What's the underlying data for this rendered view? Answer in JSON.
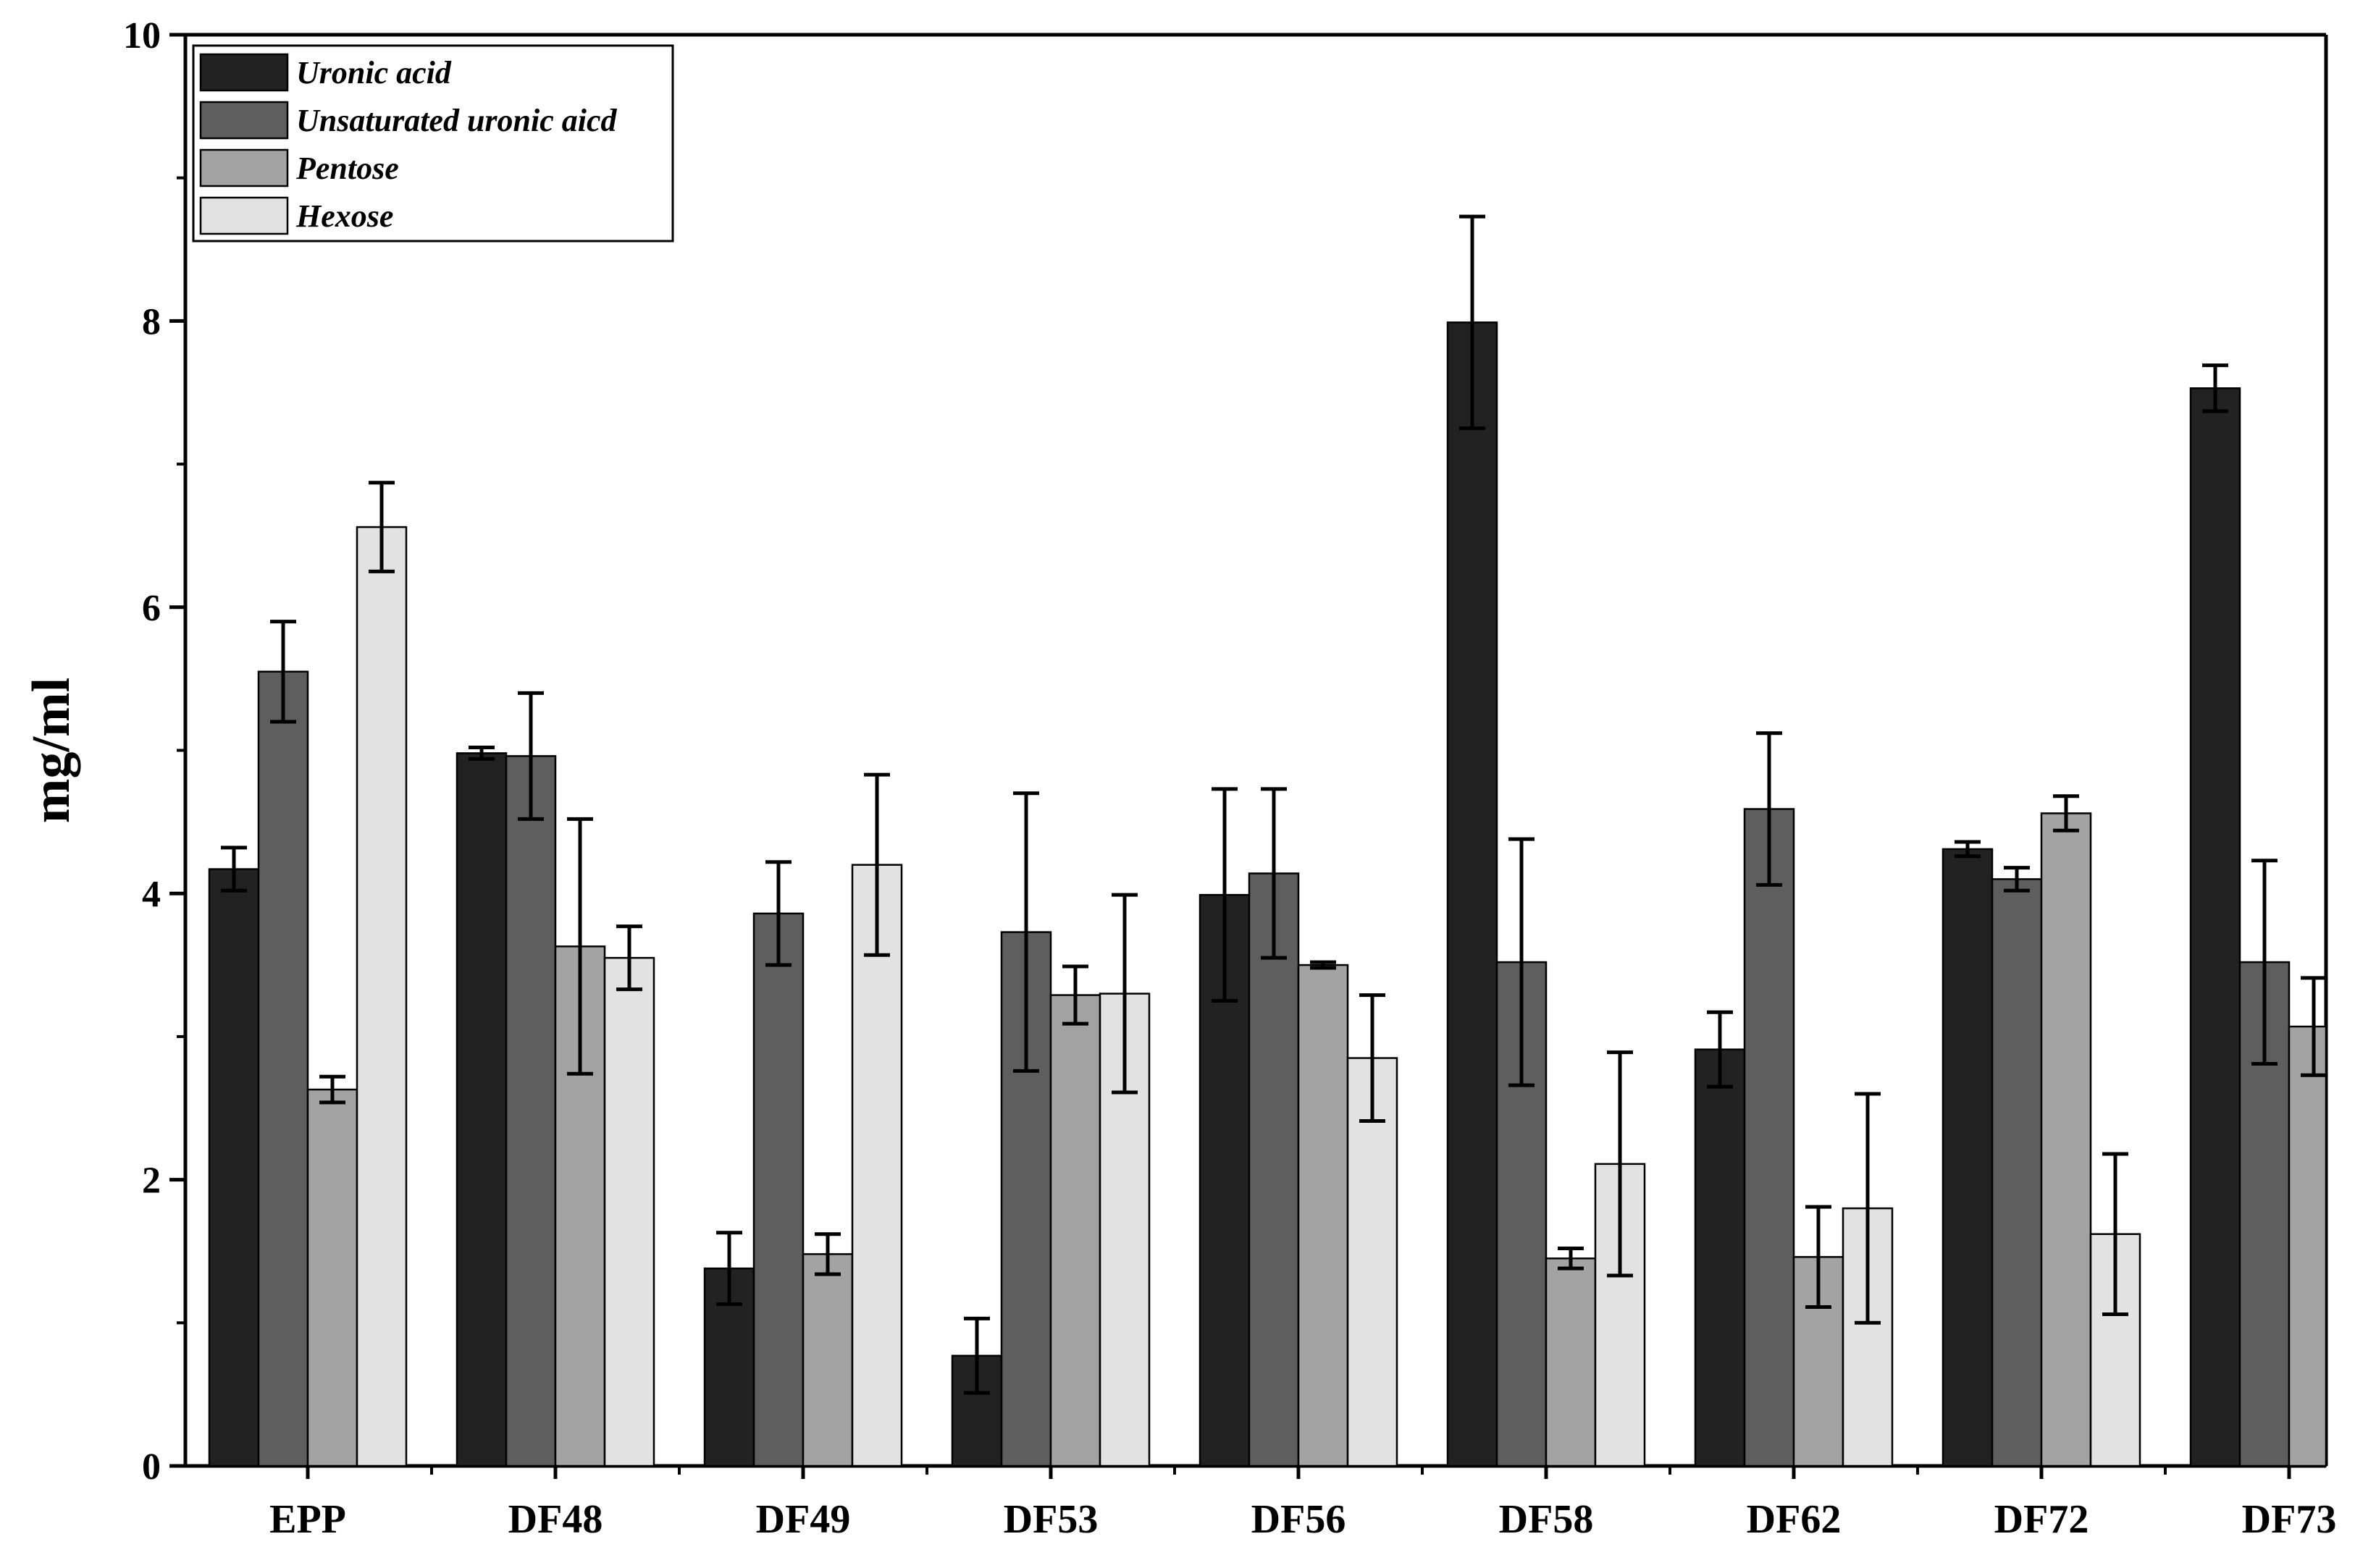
{
  "chart_data": {
    "type": "bar",
    "title": "",
    "xlabel": "",
    "ylabel": "mg/ml",
    "ylim": [
      0,
      10
    ],
    "yticks": [
      "0",
      "2",
      "4",
      "6",
      "8",
      "10"
    ],
    "categories": [
      "EPP",
      "DF48",
      "DF49",
      "DF53",
      "DF56",
      "DF58",
      "DF62",
      "DF72",
      "DF73"
    ],
    "legend_position": "top-left",
    "series": [
      {
        "name": "Uronic acid",
        "color": "#222222",
        "values": [
          4.17,
          4.98,
          1.38,
          0.77,
          3.99,
          7.99,
          2.91,
          4.31,
          7.53
        ],
        "errors": [
          0.15,
          0.04,
          0.25,
          0.26,
          0.74,
          0.74,
          0.26,
          0.05,
          0.16
        ]
      },
      {
        "name": "Unsaturated uronic aicd",
        "color": "#5e5e5e",
        "values": [
          5.55,
          4.96,
          3.86,
          3.73,
          4.14,
          3.52,
          4.59,
          4.1,
          3.52
        ],
        "errors": [
          0.35,
          0.44,
          0.36,
          0.97,
          0.59,
          0.86,
          0.53,
          0.08,
          0.71
        ]
      },
      {
        "name": "Pentose",
        "color": "#a3a3a3",
        "values": [
          2.63,
          3.63,
          1.48,
          3.29,
          3.5,
          1.45,
          1.46,
          4.56,
          3.07
        ],
        "errors": [
          0.09,
          0.89,
          0.14,
          0.2,
          0.02,
          0.07,
          0.35,
          0.12,
          0.34
        ]
      },
      {
        "name": "Hexose",
        "color": "#e2e2e2",
        "values": [
          6.56,
          3.55,
          4.2,
          3.3,
          2.85,
          2.11,
          1.8,
          1.62,
          null
        ],
        "errors": [
          0.31,
          0.22,
          0.63,
          0.69,
          0.44,
          0.78,
          0.8,
          0.56,
          null
        ]
      }
    ]
  }
}
